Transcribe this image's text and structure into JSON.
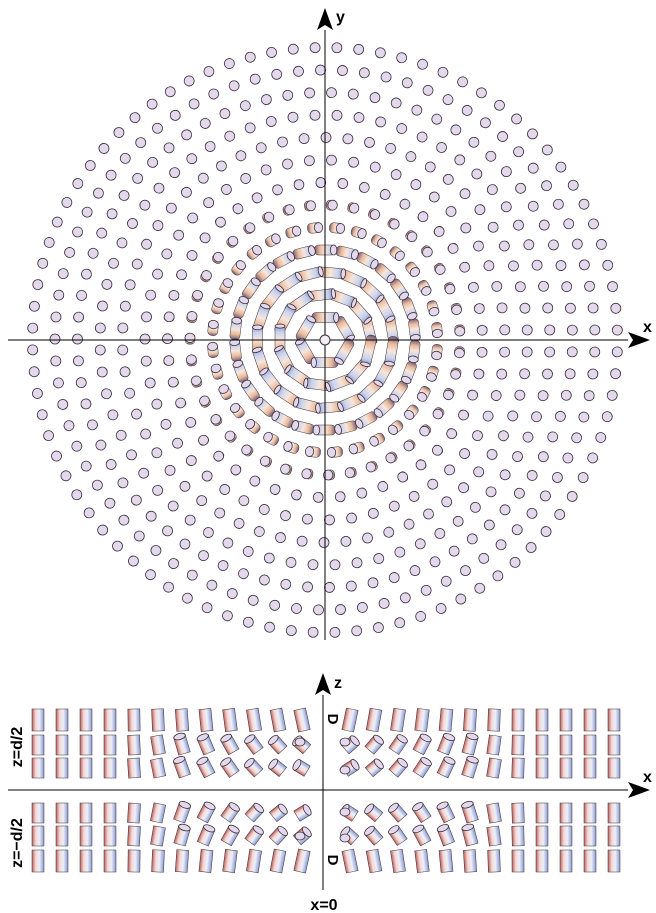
{
  "top_panel": {
    "x_axis_label": "x",
    "y_axis_label": "y"
  },
  "bottom_panel": {
    "x_axis_label": "x",
    "z_axis_label": "z",
    "top_plate_label": "z=d/2",
    "bottom_plate_label": "z=−d/2",
    "center_line_label": "x=0",
    "defect_top_label": "D",
    "defect_bottom_label": "D"
  },
  "colors": {
    "axis": "#000000",
    "cylinder_body_light": "#c9d3ee",
    "cylinder_body_warm": "#f1c7a3",
    "cylinder_body_dark": "#6a5a7a",
    "cylinder_cap": "#e4d8ec",
    "cylinder_outline": "#3a2f3a"
  }
}
